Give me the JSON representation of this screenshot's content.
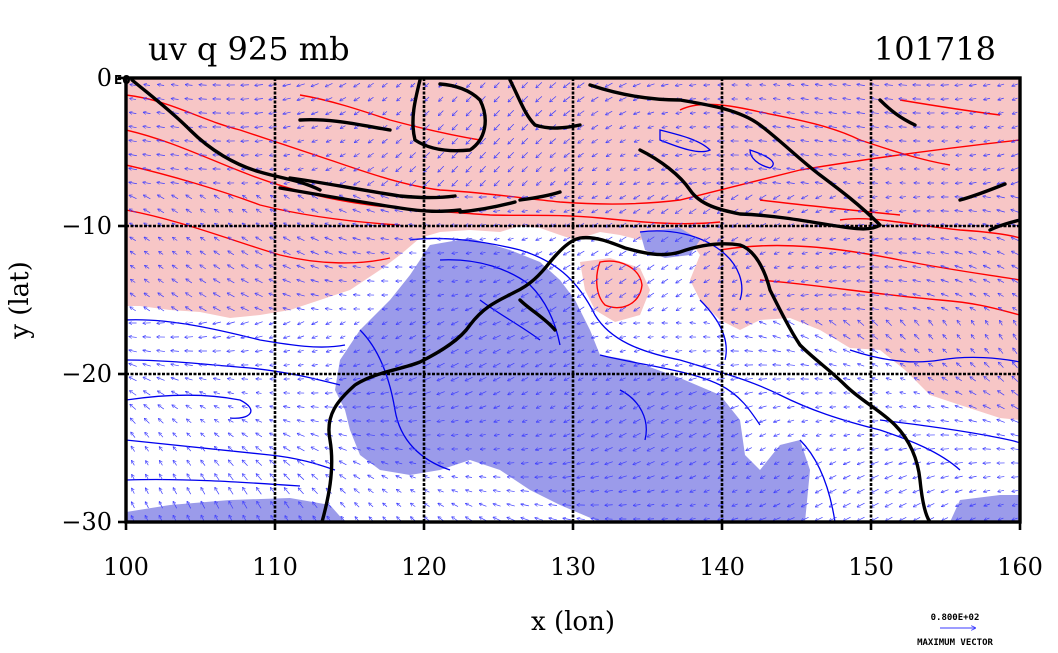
{
  "plot": {
    "title_left": "uv q 925 mb",
    "title_right": "101718",
    "xlabel": "x (lon)",
    "ylabel": "y (lat)",
    "corner_label": "E0",
    "x_ticks": [
      "100",
      "110",
      "120",
      "130",
      "140",
      "150",
      "160"
    ],
    "y_ticks": [
      "0",
      "−10",
      "−20",
      "−30"
    ],
    "legend": {
      "value": "0.800E+02",
      "caption": "MAXIMUM VECTOR"
    }
  },
  "colors": {
    "positive_fill": "#f7c6c6",
    "positive_contour": "#ff0000",
    "negative_fill": "#9b9bea",
    "negative_contour": "#0000ee",
    "vectors": "#3b3bff",
    "coast": "#000000",
    "grid": "#000000"
  },
  "map": {
    "lon_range": [
      100,
      160
    ],
    "lat_range": [
      -30,
      0
    ],
    "grid_lons": [
      110,
      120,
      130,
      140,
      150
    ],
    "grid_lats": [
      -10,
      -20
    ]
  }
}
